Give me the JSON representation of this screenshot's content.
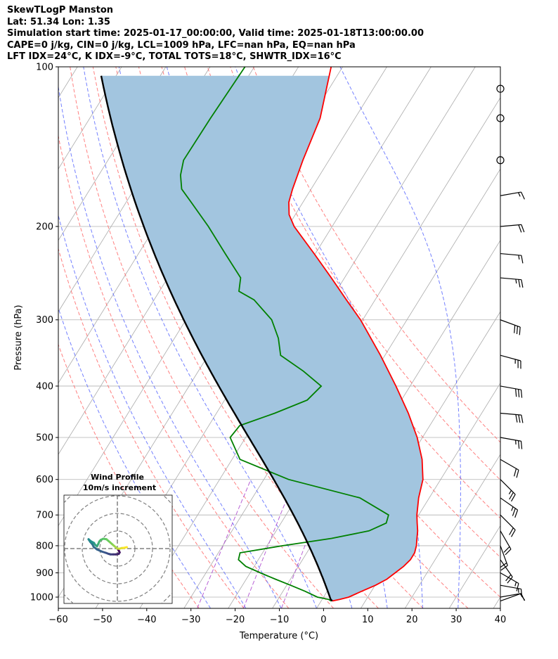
{
  "title": {
    "line1": "SkewTLogP Manston",
    "line2": "Lat: 51.34   Lon: 1.35",
    "line3": "Simulation start time: 2025-01-17_00:00:00, Valid time: 2025-01-18T13:00:00.00",
    "line4": "CAPE=0 j/kg, CIN=0 j/kg, LCL=1009 hPa, LFC=nan hPa, EQ=nan hPa",
    "line5": "LFT IDX=24°C, K IDX=-9°C, TOTAL TOTS=18°C, SHWTR_IDX=16°C"
  },
  "chart_data": {
    "type": "skewt",
    "xlabel": "Temperature (°C)",
    "ylabel": "Pressure (hPa)",
    "xlim": [
      -60,
      40
    ],
    "ylim": [
      1050,
      100
    ],
    "xticks": [
      -60,
      -50,
      -40,
      -30,
      -20,
      -10,
      0,
      10,
      20,
      30,
      40
    ],
    "xtick_labels": [
      "−60",
      "−50",
      "−40",
      "−30",
      "−20",
      "−10",
      "0",
      "10",
      "20",
      "30",
      "40"
    ],
    "yticks": [
      1000,
      900,
      800,
      700,
      600,
      500,
      400,
      300,
      200,
      100
    ],
    "ytick_labels": [
      "1000",
      "900",
      "800",
      "700",
      "600",
      "500",
      "400",
      "300",
      "200",
      "100"
    ],
    "grid": true,
    "series": [
      {
        "kind": "temperature",
        "color": "#ff0000",
        "points": [
          {
            "p": 1017,
            "t": 2.5
          },
          {
            "p": 1010,
            "t": 4.0
          },
          {
            "p": 1000,
            "t": 5.7
          },
          {
            "p": 975,
            "t": 7.8
          },
          {
            "p": 950,
            "t": 10.1
          },
          {
            "p": 925,
            "t": 11.8
          },
          {
            "p": 900,
            "t": 12.8
          },
          {
            "p": 875,
            "t": 13.8
          },
          {
            "p": 850,
            "t": 14.4
          },
          {
            "p": 825,
            "t": 14.4
          },
          {
            "p": 800,
            "t": 13.8
          },
          {
            "p": 775,
            "t": 12.9
          },
          {
            "p": 750,
            "t": 12.0
          },
          {
            "p": 725,
            "t": 10.8
          },
          {
            "p": 700,
            "t": 9.6
          },
          {
            "p": 650,
            "t": 7.6
          },
          {
            "p": 600,
            "t": 6.0
          },
          {
            "p": 550,
            "t": 3.0
          },
          {
            "p": 500,
            "t": -1.2
          },
          {
            "p": 450,
            "t": -6.6
          },
          {
            "p": 400,
            "t": -13.2
          },
          {
            "p": 350,
            "t": -21.0
          },
          {
            "p": 300,
            "t": -30.5
          },
          {
            "p": 275,
            "t": -36.5
          },
          {
            "p": 250,
            "t": -43.0
          },
          {
            "p": 225,
            "t": -50.3
          },
          {
            "p": 200,
            "t": -58.6
          },
          {
            "p": 190,
            "t": -61.4
          },
          {
            "p": 180,
            "t": -63.2
          },
          {
            "p": 170,
            "t": -64.2
          },
          {
            "p": 150,
            "t": -65.9
          },
          {
            "p": 125,
            "t": -67.9
          },
          {
            "p": 100,
            "t": -72.6
          }
        ]
      },
      {
        "kind": "dewpoint",
        "color": "#008000",
        "points": [
          {
            "p": 1017,
            "t": 2.3
          },
          {
            "p": 1010,
            "t": 1.5
          },
          {
            "p": 1000,
            "t": -1.4
          },
          {
            "p": 975,
            "t": -5.0
          },
          {
            "p": 950,
            "t": -9.1
          },
          {
            "p": 925,
            "t": -13.4
          },
          {
            "p": 900,
            "t": -17.7
          },
          {
            "p": 875,
            "t": -21.9
          },
          {
            "p": 850,
            "t": -24.5
          },
          {
            "p": 825,
            "t": -25.1
          },
          {
            "p": 800,
            "t": -16.4
          },
          {
            "p": 775,
            "t": -6.4
          },
          {
            "p": 750,
            "t": 1.0
          },
          {
            "p": 725,
            "t": 3.8
          },
          {
            "p": 700,
            "t": 3.2
          },
          {
            "p": 650,
            "t": -5.7
          },
          {
            "p": 600,
            "t": -24.4
          },
          {
            "p": 550,
            "t": -38.2
          },
          {
            "p": 500,
            "t": -43.5
          },
          {
            "p": 475,
            "t": -43.0
          },
          {
            "p": 450,
            "t": -36.8
          },
          {
            "p": 425,
            "t": -31.3
          },
          {
            "p": 400,
            "t": -30.1
          },
          {
            "p": 375,
            "t": -36.2
          },
          {
            "p": 350,
            "t": -43.6
          },
          {
            "p": 325,
            "t": -46.5
          },
          {
            "p": 300,
            "t": -50.6
          },
          {
            "p": 275,
            "t": -57.4
          },
          {
            "p": 265,
            "t": -62.0
          },
          {
            "p": 250,
            "t": -63.5
          },
          {
            "p": 225,
            "t": -70.4
          },
          {
            "p": 200,
            "t": -78.0
          },
          {
            "p": 180,
            "t": -85.3
          },
          {
            "p": 170,
            "t": -89.3
          },
          {
            "p": 160,
            "t": -91.5
          },
          {
            "p": 150,
            "t": -92.9
          },
          {
            "p": 125,
            "t": -92.7
          },
          {
            "p": 100,
            "t": -92.1
          }
        ]
      }
    ],
    "parcel_profile": {
      "color": "#000000",
      "surface_pressure": 1017,
      "surface_temperature": 2.5,
      "lcl_pressure": 1009
    },
    "shading": {
      "between": [
        "temperature",
        "parcel"
      ],
      "color": "#a2c5df"
    },
    "reference_lines": {
      "dry_adiabats": {
        "color": "#ff6060",
        "theta_c": [
          -30,
          -20,
          -10,
          0,
          10,
          20,
          30,
          40,
          50,
          60,
          70,
          80
        ]
      },
      "moist_adiabats": {
        "color": "#5060ff",
        "start_t": [
          -24,
          -16,
          -8,
          0,
          8,
          16,
          24,
          32
        ]
      },
      "mixing_ratio": {
        "color": "#b050d0"
      },
      "isotherms": {
        "color": "#aaaaaa",
        "step": 10
      }
    },
    "wind_barbs": [
      {
        "p": 1017,
        "speed_kt": 10,
        "dir": 70
      },
      {
        "p": 1000,
        "speed_kt": 12,
        "dir": 80
      },
      {
        "p": 950,
        "speed_kt": 14,
        "dir": 100
      },
      {
        "p": 900,
        "speed_kt": 15,
        "dir": 120
      },
      {
        "p": 850,
        "speed_kt": 20,
        "dir": 145
      },
      {
        "p": 800,
        "speed_kt": 20,
        "dir": 160
      },
      {
        "p": 750,
        "speed_kt": 20,
        "dir": 150
      },
      {
        "p": 700,
        "speed_kt": 20,
        "dir": 135
      },
      {
        "p": 650,
        "speed_kt": 25,
        "dir": 125
      },
      {
        "p": 600,
        "speed_kt": 25,
        "dir": 135
      },
      {
        "p": 550,
        "speed_kt": 20,
        "dir": 120
      },
      {
        "p": 500,
        "speed_kt": 25,
        "dir": 100
      },
      {
        "p": 450,
        "speed_kt": 30,
        "dir": 95
      },
      {
        "p": 400,
        "speed_kt": 30,
        "dir": 100
      },
      {
        "p": 350,
        "speed_kt": 25,
        "dir": 105
      },
      {
        "p": 300,
        "speed_kt": 30,
        "dir": 110
      },
      {
        "p": 250,
        "speed_kt": 25,
        "dir": 95
      },
      {
        "p": 225,
        "speed_kt": 15,
        "dir": 95
      },
      {
        "p": 200,
        "speed_kt": 20,
        "dir": 85
      },
      {
        "p": 175,
        "speed_kt": 15,
        "dir": 80
      },
      {
        "p": 150,
        "speed_kt": 0,
        "dir": 0
      },
      {
        "p": 125,
        "speed_kt": 0,
        "dir": 0
      },
      {
        "p": 110,
        "speed_kt": 0,
        "dir": 0
      }
    ],
    "hodograph": {
      "title_line1": "Wind Profile",
      "title_line2": "10m/s increment",
      "ring_increment_ms": 10,
      "u_ms": [
        0.5,
        0.9,
        1.3,
        0.8,
        -0.9,
        -2.3,
        -3.9,
        -5.0,
        -6.6,
        -8.8,
        -11.6,
        -13.5,
        -14.2,
        -15.4,
        -16.4,
        -15.0,
        -13.3,
        -12.7,
        -11.6,
        -10.9,
        -10.3,
        -9.5,
        -8.0,
        -6.2,
        -4.2,
        -2.4,
        -1.1,
        0.0,
        1.2,
        2.4,
        3.7,
        5.4
      ],
      "v_ms": [
        -0.7,
        -1.3,
        -2.2,
        -3.0,
        -3.3,
        -3.3,
        -3.3,
        -3.0,
        -2.4,
        -1.7,
        -0.5,
        1.0,
        2.4,
        3.8,
        5.3,
        4.1,
        3.2,
        2.2,
        1.3,
        2.6,
        4.0,
        4.9,
        5.6,
        5.3,
        3.6,
        2.0,
        0.9,
        0.0,
        -0.1,
        0.3,
        0.4,
        0.8
      ]
    }
  }
}
